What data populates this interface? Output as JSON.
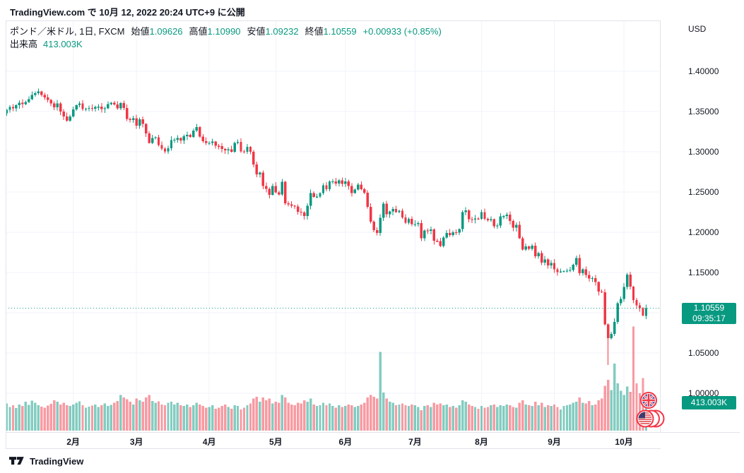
{
  "header": {
    "publish_text": "TradingView.com で 10月 12, 2022 20:24 UTC+9 に公開"
  },
  "legend": {
    "title": "ポンド／米ドル, 1日, FXCM",
    "ohlc": [
      {
        "label": "始値",
        "value": "1.09626"
      },
      {
        "label": "高値",
        "value": "1.10990"
      },
      {
        "label": "安値",
        "value": "1.09232"
      },
      {
        "label": "終値",
        "value": "1.10559"
      }
    ],
    "change": "+0.00933 (+0.85%)",
    "volume_label": "出来高",
    "volume_value": "413.003K"
  },
  "price_axis": {
    "currency_label": "USD",
    "last_price": "1.10559",
    "countdown": "09:35:17",
    "volume_badge": "413.003K"
  },
  "footer": {
    "brand": "TradingView"
  },
  "colors": {
    "up": "#089981",
    "down": "#F23645",
    "volume_up": "rgba(8,153,129,0.5)",
    "volume_down": "rgba(242,54,69,0.5)",
    "accent": "#089981",
    "text": "#131722",
    "grid": "#f0f3fa",
    "border": "#e0e3eb",
    "flag_ring": "#f23645"
  },
  "chart_data": {
    "type": "candlestick+volume",
    "title": "ポンド／米ドル, 1日, FXCM",
    "symbol": "ポンド／米ドル",
    "interval": "1日",
    "exchange": "FXCM",
    "ylabel": "USD",
    "grid": true,
    "y_ticks": [
      {
        "label": "1.40000",
        "price": 1.4
      },
      {
        "label": "1.35000",
        "price": 1.35
      },
      {
        "label": "1.30000",
        "price": 1.3
      },
      {
        "label": "1.25000",
        "price": 1.25
      },
      {
        "label": "1.20000",
        "price": 1.2
      },
      {
        "label": "1.15000",
        "price": 1.15
      },
      {
        "label": "1.05000",
        "price": 1.05
      },
      {
        "label": "1.00000",
        "price": 1.0
      }
    ],
    "price_gridlines": [
      1.0,
      1.05,
      1.1,
      1.15,
      1.2,
      1.25,
      1.3,
      1.35,
      1.4
    ],
    "visible_price_range": [
      0.94,
      1.46
    ],
    "x_labels": [
      {
        "label": "2月",
        "day_index": 21
      },
      {
        "label": "3月",
        "day_index": 41
      },
      {
        "label": "4月",
        "day_index": 64
      },
      {
        "label": "5月",
        "day_index": 85
      },
      {
        "label": "6月",
        "day_index": 107
      },
      {
        "label": "7月",
        "day_index": 129
      },
      {
        "label": "8月",
        "day_index": 150
      },
      {
        "label": "9月",
        "day_index": 173
      },
      {
        "label": "10月",
        "day_index": 195
      }
    ],
    "open_rule": "open equals previous close",
    "first_open": 1.348,
    "closes": [
      1.352,
      1.3555,
      1.354,
      1.358,
      1.361,
      1.359,
      1.362,
      1.3655,
      1.3704,
      1.373,
      1.3749,
      1.3708,
      1.3675,
      1.3645,
      1.36,
      1.3554,
      1.36,
      1.35,
      1.344,
      1.3385,
      1.344,
      1.3526,
      1.3577,
      1.3601,
      1.3532,
      1.3535,
      1.3545,
      1.3537,
      1.3556,
      1.356,
      1.3531,
      1.3541,
      1.3593,
      1.3609,
      1.3589,
      1.354,
      1.3606,
      1.3545,
      1.341,
      1.3395,
      1.3416,
      1.3324,
      1.3405,
      1.3346,
      1.3229,
      1.3109,
      1.3171,
      1.3181,
      1.3085,
      1.3039,
      1.3003,
      1.3043,
      1.3145,
      1.315,
      1.317,
      1.3142,
      1.3192,
      1.3212,
      1.3185,
      1.3262,
      1.3305,
      1.3189,
      1.3132,
      1.311,
      1.3111,
      1.3127,
      1.3073,
      1.307,
      1.3034,
      1.3016,
      1.303,
      1.3002,
      1.311,
      1.3121,
      1.3006,
      1.2999,
      1.306,
      1.2998,
      1.284,
      1.2718,
      1.274,
      1.2576,
      1.254,
      1.2466,
      1.2575,
      1.2497,
      1.2471,
      1.2629,
      1.236,
      1.2345,
      1.233,
      1.232,
      1.2255,
      1.2246,
      1.22,
      1.233,
      1.2486,
      1.244,
      1.2441,
      1.2485,
      1.2585,
      1.2533,
      1.263,
      1.2632,
      1.2605,
      1.2646,
      1.2603,
      1.2631,
      1.2576,
      1.2489,
      1.2532,
      1.2591,
      1.2537,
      1.2493,
      1.2316,
      1.2133,
      1.2028,
      1.1992,
      1.2178,
      1.2357,
      1.2224,
      1.2257,
      1.2291,
      1.2251,
      1.2266,
      1.2183,
      1.212,
      1.2167,
      1.2099,
      1.2102,
      1.2116,
      1.1926,
      1.2024,
      1.2019,
      1.2033,
      1.1893,
      1.1889,
      1.1829,
      1.1934,
      1.1993,
      1.1967,
      1.2,
      1.1995,
      1.204,
      1.2248,
      1.2271,
      1.2163,
      1.2157,
      1.217,
      1.2165,
      1.2248,
      1.2165,
      1.215,
      1.2162,
      1.2073,
      1.2083,
      1.2196,
      1.22,
      1.2218,
      1.2139,
      1.2057,
      1.2091,
      1.1927,
      1.1783,
      1.1825,
      1.1796,
      1.1832,
      1.17,
      1.1743,
      1.1622,
      1.1663,
      1.1588,
      1.162,
      1.154,
      1.1506,
      1.1511,
      1.1518,
      1.1523,
      1.1532,
      1.1597,
      1.1681,
      1.149,
      1.1541,
      1.1469,
      1.1424,
      1.1432,
      1.138,
      1.1264,
      1.1256,
      1.0856,
      1.0685,
      1.0735,
      1.0885,
      1.1117,
      1.1169,
      1.1322,
      1.1473,
      1.1325,
      1.1159,
      1.109,
      1.1058,
      1.0966,
      1.10559
    ],
    "volumes_k": [
      320,
      280,
      300,
      265,
      310,
      290,
      340,
      305,
      355,
      330,
      300,
      285,
      270,
      295,
      315,
      360,
      340,
      310,
      330,
      300,
      290,
      310,
      330,
      345,
      300,
      270,
      285,
      295,
      310,
      280,
      300,
      320,
      290,
      305,
      330,
      350,
      420,
      390,
      370,
      340,
      310,
      380,
      360,
      340,
      390,
      420,
      350,
      330,
      345,
      310,
      300,
      330,
      340,
      310,
      330,
      300,
      290,
      310,
      280,
      300,
      330,
      310,
      290,
      270,
      280,
      300,
      260,
      270,
      290,
      310,
      280,
      260,
      300,
      290,
      250,
      270,
      300,
      320,
      380,
      400,
      340,
      390,
      360,
      380,
      320,
      340,
      330,
      420,
      390,
      330,
      310,
      300,
      330,
      320,
      360,
      340,
      380,
      310,
      290,
      300,
      330,
      300,
      320,
      290,
      270,
      300,
      280,
      290,
      310,
      300,
      280,
      290,
      310,
      330,
      390,
      420,
      400,
      380,
      930,
      450,
      380,
      340,
      330,
      300,
      310,
      320,
      300,
      290,
      310,
      300,
      280,
      240,
      290,
      300,
      280,
      330,
      310,
      320,
      300,
      310,
      280,
      290,
      270,
      300,
      360,
      340,
      310,
      290,
      280,
      260,
      290,
      270,
      280,
      300,
      310,
      280,
      300,
      290,
      310,
      300,
      280,
      270,
      330,
      360,
      310,
      300,
      290,
      340,
      300,
      330,
      280,
      300,
      290,
      310,
      280,
      250,
      290,
      300,
      310,
      330,
      340,
      390,
      330,
      320,
      350,
      300,
      310,
      360,
      380,
      530,
      600,
      480,
      790,
      560,
      470,
      420,
      520,
      460,
      1230,
      560,
      440,
      620,
      413.003
    ],
    "overrides": {
      "189": {
        "low": 1.084
      },
      "190": {
        "low": 1.035
      },
      "202": {
        "open": 1.09626,
        "high": 1.1099,
        "low": 1.09232,
        "close": 1.10559
      }
    },
    "last": {
      "price": 1.10559,
      "countdown": "09:35:17",
      "volume_k": 413.003
    }
  }
}
